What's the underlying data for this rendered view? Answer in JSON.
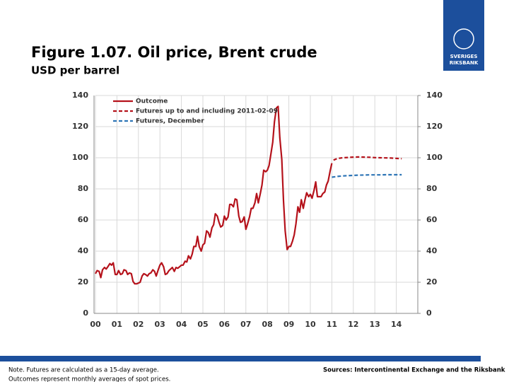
{
  "chart_data": {
    "type": "line",
    "title": "Figure 1.07. Oil price, Brent crude",
    "subtitle": "USD per barrel",
    "logo": [
      "SVERIGES",
      "RIKSBANK"
    ],
    "notes": [
      "Note. Futures are calculated as a 15-day average.",
      "Outcomes represent monthly averages of spot prices."
    ],
    "source": "Sources: Intercontinental Exchange and the Riksbank",
    "xlim": [
      0,
      15
    ],
    "xticks": [
      {
        "value": 0,
        "label": "00"
      },
      {
        "value": 1,
        "label": "01"
      },
      {
        "value": 2,
        "label": "02"
      },
      {
        "value": 3,
        "label": "03"
      },
      {
        "value": 4,
        "label": "04"
      },
      {
        "value": 5,
        "label": "05"
      },
      {
        "value": 6,
        "label": "06"
      },
      {
        "value": 7,
        "label": "07"
      },
      {
        "value": 8,
        "label": "08"
      },
      {
        "value": 9,
        "label": "09"
      },
      {
        "value": 10,
        "label": "10"
      },
      {
        "value": 11,
        "label": "11"
      },
      {
        "value": 12,
        "label": "12"
      },
      {
        "value": 13,
        "label": "13"
      },
      {
        "value": 14,
        "label": "14"
      }
    ],
    "ylim": [
      0,
      140
    ],
    "yticks": [
      0,
      20,
      40,
      60,
      80,
      100,
      120,
      140
    ],
    "y2lim": [
      0,
      140
    ],
    "y2ticks": [
      0,
      20,
      40,
      60,
      80,
      100,
      120,
      140
    ],
    "grid": true,
    "legend": "top-left",
    "series": [
      {
        "name": "Outcome",
        "color": "#b5121b",
        "style": "solid",
        "x": [
          0,
          0.08,
          0.17,
          0.25,
          0.33,
          0.42,
          0.5,
          0.58,
          0.67,
          0.75,
          0.83,
          0.92,
          1,
          1.08,
          1.17,
          1.25,
          1.33,
          1.42,
          1.5,
          1.58,
          1.67,
          1.75,
          1.83,
          1.92,
          2,
          2.08,
          2.17,
          2.25,
          2.33,
          2.42,
          2.5,
          2.58,
          2.67,
          2.75,
          2.83,
          2.92,
          3,
          3.08,
          3.17,
          3.25,
          3.33,
          3.42,
          3.5,
          3.58,
          3.67,
          3.75,
          3.83,
          3.92,
          4,
          4.08,
          4.17,
          4.25,
          4.33,
          4.42,
          4.5,
          4.58,
          4.67,
          4.75,
          4.83,
          4.92,
          5,
          5.08,
          5.17,
          5.25,
          5.33,
          5.42,
          5.5,
          5.58,
          5.67,
          5.75,
          5.83,
          5.92,
          6,
          6.08,
          6.17,
          6.25,
          6.33,
          6.42,
          6.5,
          6.58,
          6.67,
          6.75,
          6.83,
          6.92,
          7,
          7.08,
          7.17,
          7.25,
          7.33,
          7.42,
          7.5,
          7.58,
          7.67,
          7.75,
          7.83,
          7.92,
          8,
          8.08,
          8.17,
          8.25,
          8.33,
          8.42,
          8.5,
          8.58,
          8.67,
          8.75,
          8.83,
          8.92,
          9,
          9.08,
          9.17,
          9.25,
          9.33,
          9.42,
          9.5,
          9.58,
          9.67,
          9.75,
          9.83,
          9.92,
          10,
          10.08,
          10.17,
          10.25,
          10.33,
          10.42,
          10.5,
          10.58,
          10.67,
          10.75,
          10.83,
          10.92,
          11
        ],
        "values": [
          25.5,
          27.5,
          27,
          23,
          28,
          29.5,
          28.5,
          30,
          32,
          31,
          32.5,
          25,
          25,
          27.5,
          25,
          25.5,
          28,
          27.5,
          25,
          26,
          25.5,
          20.5,
          19,
          19,
          19.5,
          20,
          24,
          25.5,
          25,
          24,
          25.5,
          26,
          28,
          27,
          24,
          28,
          31,
          32.5,
          30,
          25,
          25.5,
          27.5,
          28.5,
          29.5,
          27,
          29.5,
          29,
          30,
          31,
          31,
          33.5,
          33,
          37,
          35,
          38,
          43,
          43,
          49.5,
          43,
          40,
          44,
          45,
          53,
          52,
          49,
          55,
          57,
          64,
          62.5,
          58.5,
          55.5,
          56.5,
          62.5,
          60,
          62,
          70,
          70,
          68.5,
          73.5,
          73,
          62.5,
          58.5,
          59,
          62,
          54,
          57.5,
          62,
          67.5,
          67.5,
          71,
          77,
          71,
          77,
          82.5,
          92,
          91,
          92,
          95,
          103,
          110,
          123,
          132,
          133,
          113,
          99,
          72.5,
          53,
          41,
          43,
          43,
          46.5,
          50.5,
          57.5,
          68.5,
          65,
          73,
          67.5,
          73,
          77.5,
          75,
          76.5,
          74,
          79,
          84.5,
          75,
          75,
          75,
          77,
          78,
          82.5,
          85,
          91.5,
          96.5
        ]
      },
      {
        "name": "Futures up to and including 2011-02-09",
        "color": "#b5121b",
        "style": "dashed",
        "x": [
          11.08,
          11.25,
          11.5,
          11.75,
          12,
          12.25,
          12.5,
          12.75,
          13,
          13.25,
          13.5,
          13.75,
          14,
          14.25
        ],
        "values": [
          98.5,
          99.5,
          100,
          100.2,
          100.4,
          100.5,
          100.4,
          100.3,
          100.1,
          100,
          99.9,
          99.8,
          99.6,
          99.4
        ]
      },
      {
        "name": "Futures, December",
        "color": "#2e75b6",
        "style": "dashed",
        "x": [
          11,
          11.25,
          11.5,
          11.75,
          12,
          12.25,
          12.5,
          12.75,
          13,
          13.25,
          13.5,
          13.75,
          14,
          14.25
        ],
        "values": [
          87.5,
          88,
          88.3,
          88.5,
          88.7,
          88.8,
          88.9,
          89,
          89,
          89,
          89.1,
          89.1,
          89.1,
          89.1
        ]
      }
    ]
  }
}
